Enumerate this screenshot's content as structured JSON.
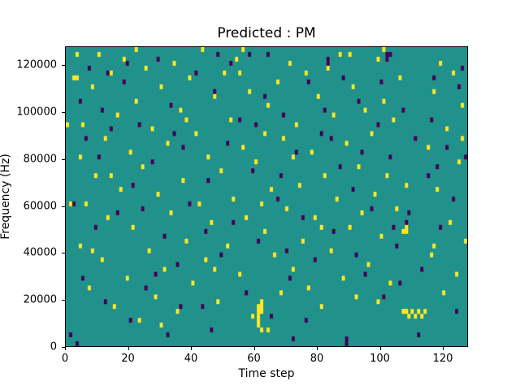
{
  "chart_data": {
    "type": "heatmap",
    "title": "Predicted : PM",
    "xlabel": "Time step",
    "ylabel": "Frequency (Hz)",
    "xlim": [
      0,
      128
    ],
    "ylim": [
      0,
      128000
    ],
    "x_ticks": [
      0,
      20,
      40,
      60,
      80,
      100,
      120
    ],
    "y_ticks": [
      0,
      20000,
      40000,
      60000,
      80000,
      100000,
      120000
    ],
    "grid": false,
    "legend": "none",
    "colors": {
      "background": "#21918c",
      "high": "#fde725",
      "low": "#440154",
      "axis": "#000000",
      "figure_background": "#ffffff"
    },
    "grid_size": {
      "time_steps": 128,
      "freq_bins": 64,
      "hz_per_bin": 2000
    },
    "cells_high": [
      [
        0,
        47
      ],
      [
        1,
        30
      ],
      [
        2,
        57
      ],
      [
        3,
        62
      ],
      [
        4,
        40
      ],
      [
        4,
        21
      ],
      [
        5,
        47
      ],
      [
        6,
        30
      ],
      [
        7,
        12
      ],
      [
        8,
        55
      ],
      [
        9,
        36
      ],
      [
        10,
        62
      ],
      [
        11,
        18
      ],
      [
        12,
        44
      ],
      [
        13,
        27
      ],
      [
        14,
        58
      ],
      [
        15,
        8
      ],
      [
        16,
        49
      ],
      [
        17,
        33
      ],
      [
        18,
        61
      ],
      [
        19,
        14
      ],
      [
        20,
        41
      ],
      [
        21,
        25
      ],
      [
        22,
        52
      ],
      [
        23,
        5
      ],
      [
        24,
        38
      ],
      [
        25,
        59
      ],
      [
        26,
        20
      ],
      [
        27,
        46
      ],
      [
        28,
        10
      ],
      [
        29,
        32
      ],
      [
        30,
        55
      ],
      [
        31,
        16
      ],
      [
        32,
        43
      ],
      [
        33,
        28
      ],
      [
        34,
        60
      ],
      [
        35,
        7
      ],
      [
        36,
        50
      ],
      [
        37,
        35
      ],
      [
        38,
        22
      ],
      [
        39,
        57
      ],
      [
        40,
        13
      ],
      [
        41,
        45
      ],
      [
        42,
        30
      ],
      [
        43,
        63
      ],
      [
        44,
        18
      ],
      [
        45,
        40
      ],
      [
        46,
        26
      ],
      [
        47,
        53
      ],
      [
        48,
        9
      ],
      [
        49,
        37
      ],
      [
        50,
        58
      ],
      [
        51,
        21
      ],
      [
        52,
        48
      ],
      [
        53,
        31
      ],
      [
        54,
        61
      ],
      [
        55,
        15
      ],
      [
        56,
        63
      ],
      [
        56,
        42
      ],
      [
        57,
        27
      ],
      [
        58,
        54
      ],
      [
        59,
        6
      ],
      [
        60,
        39
      ],
      [
        61,
        8
      ],
      [
        61,
        7
      ],
      [
        61,
        6
      ],
      [
        61,
        5
      ],
      [
        61,
        4
      ],
      [
        62,
        9
      ],
      [
        62,
        8
      ],
      [
        62,
        7
      ],
      [
        62,
        3
      ],
      [
        62,
        30
      ],
      [
        63,
        24
      ],
      [
        63,
        45
      ],
      [
        64,
        51
      ],
      [
        65,
        33
      ],
      [
        66,
        19
      ],
      [
        67,
        56
      ],
      [
        68,
        11
      ],
      [
        69,
        44
      ],
      [
        70,
        29
      ],
      [
        71,
        60
      ],
      [
        72,
        16
      ],
      [
        73,
        47
      ],
      [
        74,
        34
      ],
      [
        75,
        22
      ],
      [
        76,
        58
      ],
      [
        77,
        12
      ],
      [
        78,
        41
      ],
      [
        79,
        27
      ],
      [
        80,
        53
      ],
      [
        81,
        8
      ],
      [
        82,
        36
      ],
      [
        83,
        59
      ],
      [
        84,
        20
      ],
      [
        85,
        49
      ],
      [
        86,
        31
      ],
      [
        87,
        62
      ],
      [
        88,
        14
      ],
      [
        89,
        43
      ],
      [
        90,
        25
      ],
      [
        91,
        55
      ],
      [
        92,
        10
      ],
      [
        93,
        38
      ],
      [
        94,
        28
      ],
      [
        95,
        50
      ],
      [
        96,
        17
      ],
      [
        97,
        45
      ],
      [
        98,
        32
      ],
      [
        99,
        61
      ],
      [
        100,
        23
      ],
      [
        101,
        63
      ],
      [
        101,
        52
      ],
      [
        102,
        36
      ],
      [
        103,
        13
      ],
      [
        104,
        48
      ],
      [
        105,
        29
      ],
      [
        106,
        57
      ],
      [
        107,
        24
      ],
      [
        107,
        7
      ],
      [
        108,
        25
      ],
      [
        108,
        24
      ],
      [
        108,
        7
      ],
      [
        109,
        6
      ],
      [
        110,
        7
      ],
      [
        111,
        6
      ],
      [
        112,
        7
      ],
      [
        113,
        6
      ],
      [
        114,
        7
      ],
      [
        115,
        42
      ],
      [
        116,
        19
      ],
      [
        117,
        54
      ],
      [
        118,
        33
      ],
      [
        119,
        60
      ],
      [
        120,
        11
      ],
      [
        121,
        46
      ],
      [
        122,
        26
      ],
      [
        123,
        58
      ],
      [
        124,
        15
      ],
      [
        125,
        39
      ],
      [
        126,
        51
      ],
      [
        127,
        22
      ],
      [
        3,
        57
      ],
      [
        8,
        20
      ],
      [
        14,
        36
      ],
      [
        22,
        63
      ],
      [
        30,
        4
      ],
      [
        38,
        48
      ],
      [
        47,
        16
      ],
      [
        55,
        58
      ],
      [
        64,
        3
      ],
      [
        72,
        40
      ],
      [
        81,
        25
      ],
      [
        90,
        62
      ],
      [
        99,
        9
      ],
      [
        108,
        34
      ],
      [
        117,
        21
      ],
      [
        126,
        44
      ]
    ],
    "cells_low": [
      [
        1,
        2
      ],
      [
        3,
        0
      ],
      [
        4,
        52
      ],
      [
        6,
        44
      ],
      [
        7,
        59
      ],
      [
        9,
        25
      ],
      [
        11,
        50
      ],
      [
        12,
        9
      ],
      [
        14,
        46
      ],
      [
        16,
        28
      ],
      [
        18,
        56
      ],
      [
        20,
        5
      ],
      [
        21,
        34
      ],
      [
        23,
        47
      ],
      [
        25,
        12
      ],
      [
        27,
        39
      ],
      [
        29,
        61
      ],
      [
        31,
        23
      ],
      [
        33,
        51
      ],
      [
        35,
        17
      ],
      [
        37,
        42
      ],
      [
        39,
        30
      ],
      [
        41,
        58
      ],
      [
        43,
        8
      ],
      [
        45,
        35
      ],
      [
        47,
        54
      ],
      [
        49,
        19
      ],
      [
        51,
        43
      ],
      [
        53,
        26
      ],
      [
        55,
        48
      ],
      [
        57,
        11
      ],
      [
        59,
        37
      ],
      [
        61,
        22
      ],
      [
        63,
        53
      ],
      [
        65,
        6
      ],
      [
        67,
        31
      ],
      [
        69,
        49
      ],
      [
        71,
        14
      ],
      [
        73,
        41
      ],
      [
        75,
        27
      ],
      [
        77,
        56
      ],
      [
        79,
        18
      ],
      [
        81,
        45
      ],
      [
        83,
        61
      ],
      [
        83,
        60
      ],
      [
        85,
        24
      ],
      [
        87,
        38
      ],
      [
        89,
        0
      ],
      [
        89,
        1
      ],
      [
        91,
        33
      ],
      [
        93,
        52
      ],
      [
        95,
        15
      ],
      [
        97,
        29
      ],
      [
        99,
        47
      ],
      [
        101,
        10
      ],
      [
        102,
        62
      ],
      [
        102,
        61
      ],
      [
        103,
        62
      ],
      [
        103,
        40
      ],
      [
        104,
        25
      ],
      [
        105,
        21
      ],
      [
        107,
        50
      ],
      [
        109,
        28
      ],
      [
        111,
        44
      ],
      [
        113,
        16
      ],
      [
        115,
        36
      ],
      [
        117,
        57
      ],
      [
        119,
        25
      ],
      [
        121,
        42
      ],
      [
        123,
        31
      ],
      [
        125,
        55
      ],
      [
        127,
        40
      ],
      [
        2,
        30
      ],
      [
        10,
        40
      ],
      [
        19,
        60
      ],
      [
        28,
        15
      ],
      [
        36,
        8
      ],
      [
        44,
        24
      ],
      [
        52,
        60
      ],
      [
        60,
        47
      ],
      [
        68,
        36
      ],
      [
        76,
        5
      ],
      [
        84,
        44
      ],
      [
        92,
        19
      ],
      [
        100,
        56
      ],
      [
        108,
        26
      ],
      [
        116,
        48
      ],
      [
        124,
        7
      ],
      [
        5,
        14
      ],
      [
        13,
        58
      ],
      [
        24,
        29
      ],
      [
        34,
        45
      ],
      [
        46,
        3
      ],
      [
        58,
        62
      ],
      [
        70,
        20
      ],
      [
        82,
        50
      ],
      [
        94,
        41
      ],
      [
        106,
        13
      ],
      [
        118,
        38
      ],
      [
        126,
        59
      ],
      [
        64,
        62
      ],
      [
        48,
        62
      ],
      [
        88,
        57
      ],
      [
        32,
        2
      ],
      [
        72,
        1
      ],
      [
        112,
        2
      ]
    ]
  }
}
